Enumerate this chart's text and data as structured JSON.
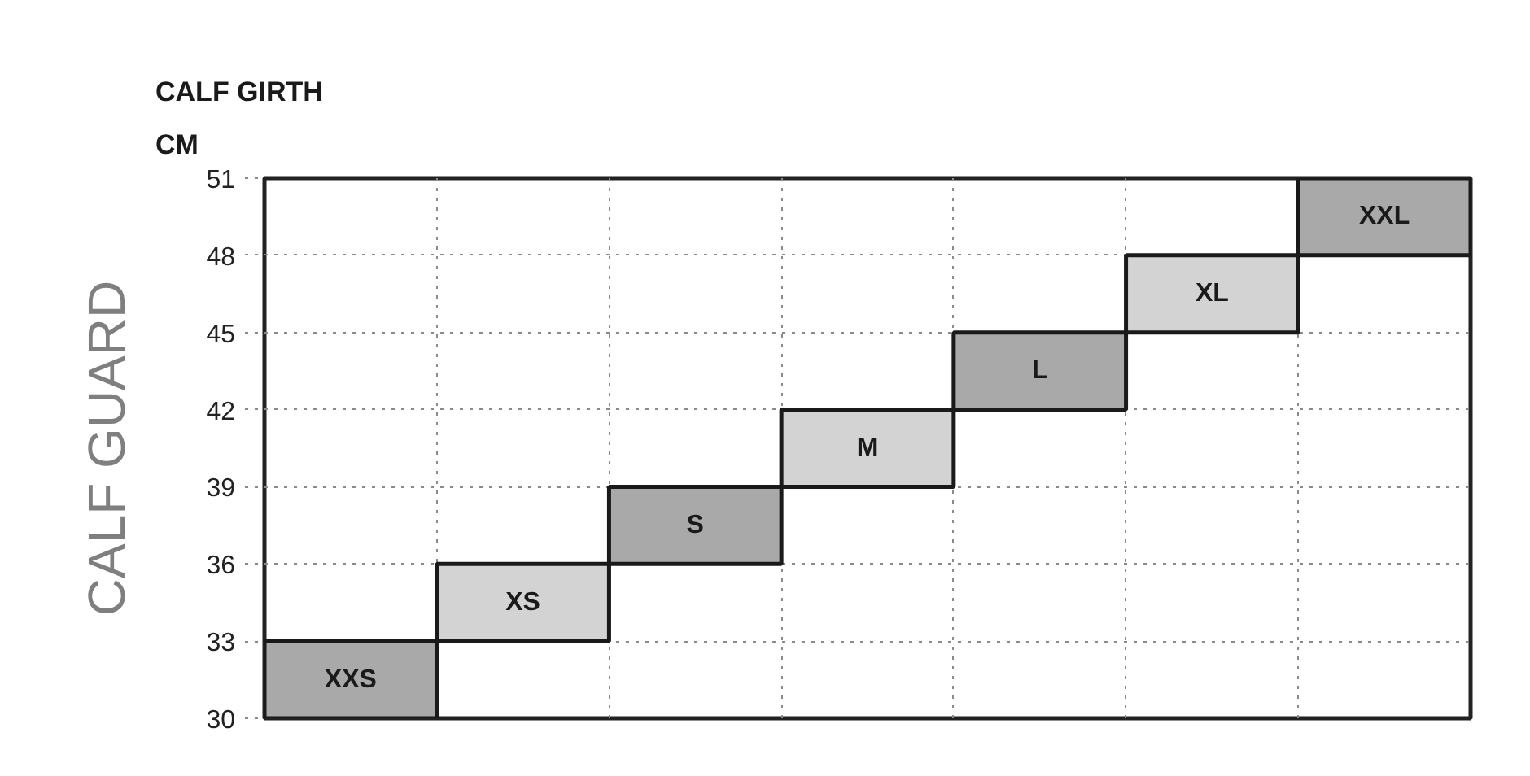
{
  "chart_data": {
    "type": "bar",
    "title": "CALF GUARD",
    "ylabel": "CALF GIRTH\nCM",
    "categories": [
      "XXS",
      "XS",
      "S",
      "M",
      "L",
      "XL",
      "XXL"
    ],
    "values": [
      3,
      3,
      3,
      3,
      3,
      3,
      3
    ],
    "base": [
      30,
      33,
      36,
      39,
      42,
      45,
      48
    ],
    "colors": [
      "#a9a9a9",
      "#d3d3d3",
      "#a9a9a9",
      "#d3d3d3",
      "#a9a9a9",
      "#d3d3d3",
      "#a9a9a9"
    ],
    "ylim": [
      30,
      51
    ],
    "yticks": [
      30,
      33,
      36,
      39,
      42,
      45,
      48,
      51
    ],
    "grid": true,
    "tick_labels": "y"
  }
}
